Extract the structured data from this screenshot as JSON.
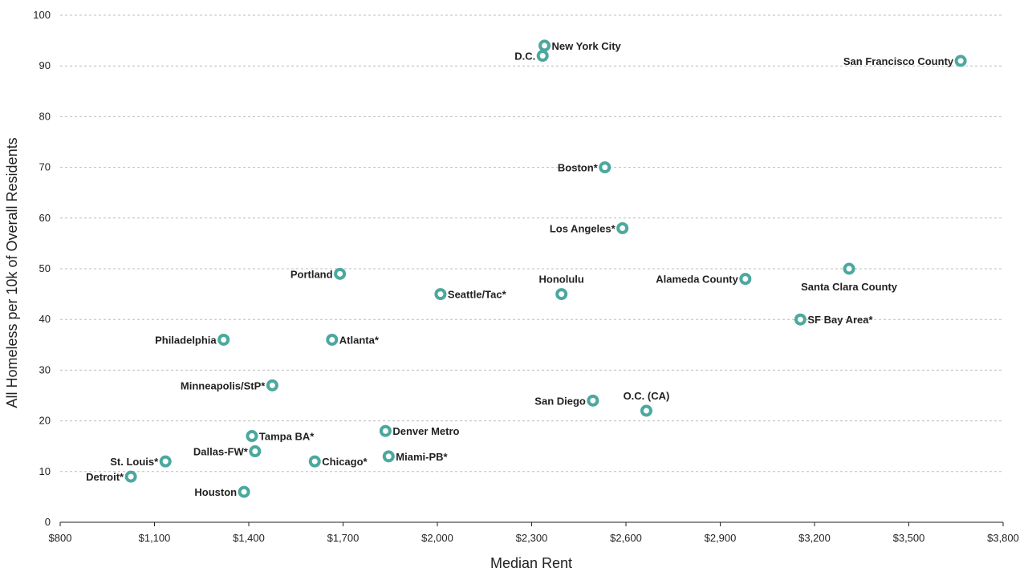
{
  "colors": {
    "marker": "#4ba89f",
    "grid": "#bdbdbd",
    "axis": "#222222"
  },
  "chart_data": {
    "type": "scatter",
    "title": "",
    "xlabel": "Median Rent",
    "ylabel": "All Homeless per 10k of Overall  Residents",
    "xlim": [
      800,
      3800
    ],
    "ylim": [
      0,
      100
    ],
    "grid": true,
    "xticks": [
      800,
      1100,
      1400,
      1700,
      2000,
      2300,
      2600,
      2900,
      3200,
      3500,
      3800
    ],
    "xtick_labels": [
      "$800",
      "$1,100",
      "$1,400",
      "$1,700",
      "$2,000",
      "$2,300",
      "$2,600",
      "$2,900",
      "$3,200",
      "$3,500",
      "$3,800"
    ],
    "yticks": [
      0,
      10,
      20,
      30,
      40,
      50,
      60,
      70,
      80,
      90,
      100
    ],
    "ytick_labels": [
      "0",
      "10",
      "20",
      "30",
      "40",
      "50",
      "60",
      "70",
      "80",
      "90",
      "100"
    ],
    "points": [
      {
        "label": "New York City",
        "x": 2341,
        "y": 94,
        "pos": "right"
      },
      {
        "label": "D.C.",
        "x": 2335,
        "y": 92,
        "pos": "left"
      },
      {
        "label": "San Francisco County",
        "x": 3665,
        "y": 91,
        "pos": "left"
      },
      {
        "label": "Boston*",
        "x": 2533,
        "y": 70,
        "pos": "left"
      },
      {
        "label": "Los Angeles*",
        "x": 2589,
        "y": 58,
        "pos": "left"
      },
      {
        "label": "Santa Clara County",
        "x": 3310,
        "y": 50,
        "pos": "below"
      },
      {
        "label": "Portland",
        "x": 1690,
        "y": 49,
        "pos": "left"
      },
      {
        "label": "Alameda County",
        "x": 2980,
        "y": 48,
        "pos": "left"
      },
      {
        "label": "Seattle/Tac*",
        "x": 2010,
        "y": 45,
        "pos": "right"
      },
      {
        "label": "Honolulu",
        "x": 2395,
        "y": 45,
        "pos": "above"
      },
      {
        "label": "SF Bay Area*",
        "x": 3155,
        "y": 40,
        "pos": "right"
      },
      {
        "label": "Philadelphia",
        "x": 1320,
        "y": 36,
        "pos": "left"
      },
      {
        "label": "Atlanta*",
        "x": 1665,
        "y": 36,
        "pos": "right"
      },
      {
        "label": "Minneapolis/StP*",
        "x": 1475,
        "y": 27,
        "pos": "left"
      },
      {
        "label": "San Diego",
        "x": 2495,
        "y": 24,
        "pos": "left"
      },
      {
        "label": "O.C. (CA)",
        "x": 2665,
        "y": 22,
        "pos": "above"
      },
      {
        "label": "Denver Metro",
        "x": 1835,
        "y": 18,
        "pos": "right"
      },
      {
        "label": "Tampa BA*",
        "x": 1410,
        "y": 17,
        "pos": "right"
      },
      {
        "label": "Dallas-FW*",
        "x": 1420,
        "y": 14,
        "pos": "left"
      },
      {
        "label": "Miami-PB*",
        "x": 1845,
        "y": 13,
        "pos": "right"
      },
      {
        "label": "St. Louis*",
        "x": 1135,
        "y": 12,
        "pos": "left"
      },
      {
        "label": "Chicago*",
        "x": 1610,
        "y": 12,
        "pos": "right"
      },
      {
        "label": "Detroit*",
        "x": 1025,
        "y": 9,
        "pos": "left"
      },
      {
        "label": "Houston",
        "x": 1385,
        "y": 6,
        "pos": "left"
      }
    ]
  }
}
